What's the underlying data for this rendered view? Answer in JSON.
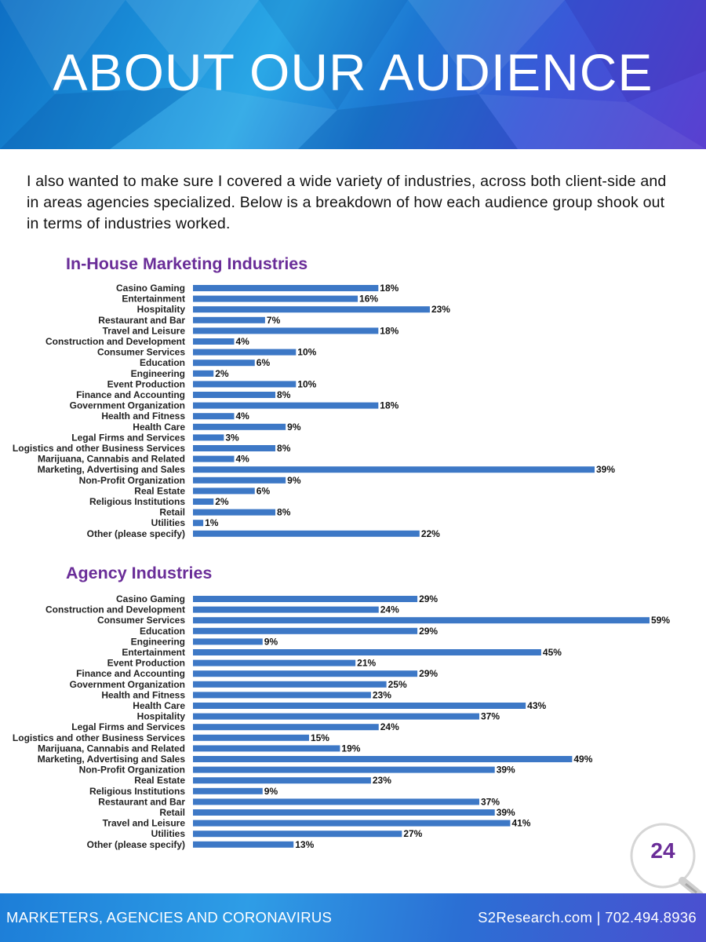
{
  "header": {
    "title": "ABOUT OUR AUDIENCE"
  },
  "intro": {
    "text": "I also wanted to make sure I covered a wide variety of industries, across both client-side and in areas agencies specialized. Below is a breakdown of how each audience group shook out in terms of industries worked."
  },
  "colors": {
    "bar": "#3d78c6",
    "title_purple": "#6a2d98"
  },
  "chart_data": [
    {
      "type": "bar",
      "orientation": "horizontal",
      "title": "In-House Marketing Industries",
      "categories": [
        "Casino Gaming",
        "Entertainment",
        "Hospitality",
        "Restaurant and Bar",
        "Travel and Leisure",
        "Construction and Development",
        "Consumer Services",
        "Education",
        "Engineering",
        "Event Production",
        "Finance and Accounting",
        "Government Organization",
        "Health and Fitness",
        "Health Care",
        "Legal Firms and Services",
        "Logistics and other Business Services",
        "Marijuana, Cannabis and Related",
        "Marketing, Advertising and Sales",
        "Non-Profit Organization",
        "Real Estate",
        "Religious Institutions",
        "Retail",
        "Utilities",
        "Other (please specify)"
      ],
      "values": [
        18,
        16,
        23,
        7,
        18,
        4,
        10,
        6,
        2,
        10,
        8,
        18,
        4,
        9,
        3,
        8,
        4,
        39,
        9,
        6,
        2,
        8,
        1,
        22
      ],
      "labels": [
        "18%",
        "16%",
        "23%",
        "7%",
        "18%",
        "4%",
        "10%",
        "6%",
        "2%",
        "10%",
        "8%",
        "18%",
        "4%",
        "9%",
        "3%",
        "8%",
        "4%",
        "39%",
        "9%",
        "6%",
        "2%",
        "8%",
        "1%",
        "22%"
      ],
      "xlim": [
        0,
        39
      ]
    },
    {
      "type": "bar",
      "orientation": "horizontal",
      "title": "Agency Industries",
      "categories": [
        "Casino Gaming",
        "Construction and Development",
        "Consumer Services",
        "Education",
        "Engineering",
        "Entertainment",
        "Event Production",
        "Finance and Accounting",
        "Government Organization",
        "Health and Fitness",
        "Health Care",
        "Hospitality",
        "Legal Firms and Services",
        "Logistics and other Business Services",
        "Marijuana, Cannabis and Related",
        "Marketing, Advertising and Sales",
        "Non-Profit Organization",
        "Real Estate",
        "Religious Institutions",
        "Restaurant and Bar",
        "Retail",
        "Travel and Leisure",
        "Utilities",
        "Other (please specify)"
      ],
      "values": [
        29,
        24,
        59,
        29,
        9,
        45,
        21,
        29,
        25,
        23,
        43,
        37,
        24,
        15,
        19,
        49,
        39,
        23,
        9,
        37,
        39,
        41,
        27,
        13
      ],
      "labels": [
        "29%",
        "24%",
        "59%",
        "29%",
        "9%",
        "45%",
        "21%",
        "29%",
        "25%",
        "23%",
        "43%",
        "37%",
        "24%",
        "15%",
        "19%",
        "49%",
        "39%",
        "23%",
        "9%",
        "37%",
        "39%",
        "41%",
        "27%",
        "13%"
      ],
      "xlim": [
        0,
        59
      ]
    }
  ],
  "page": {
    "number": "24"
  },
  "footer": {
    "left": "MARKETERS, AGENCIES AND CORONAVIRUS",
    "right": "S2Research.com | 702.494.8936"
  }
}
